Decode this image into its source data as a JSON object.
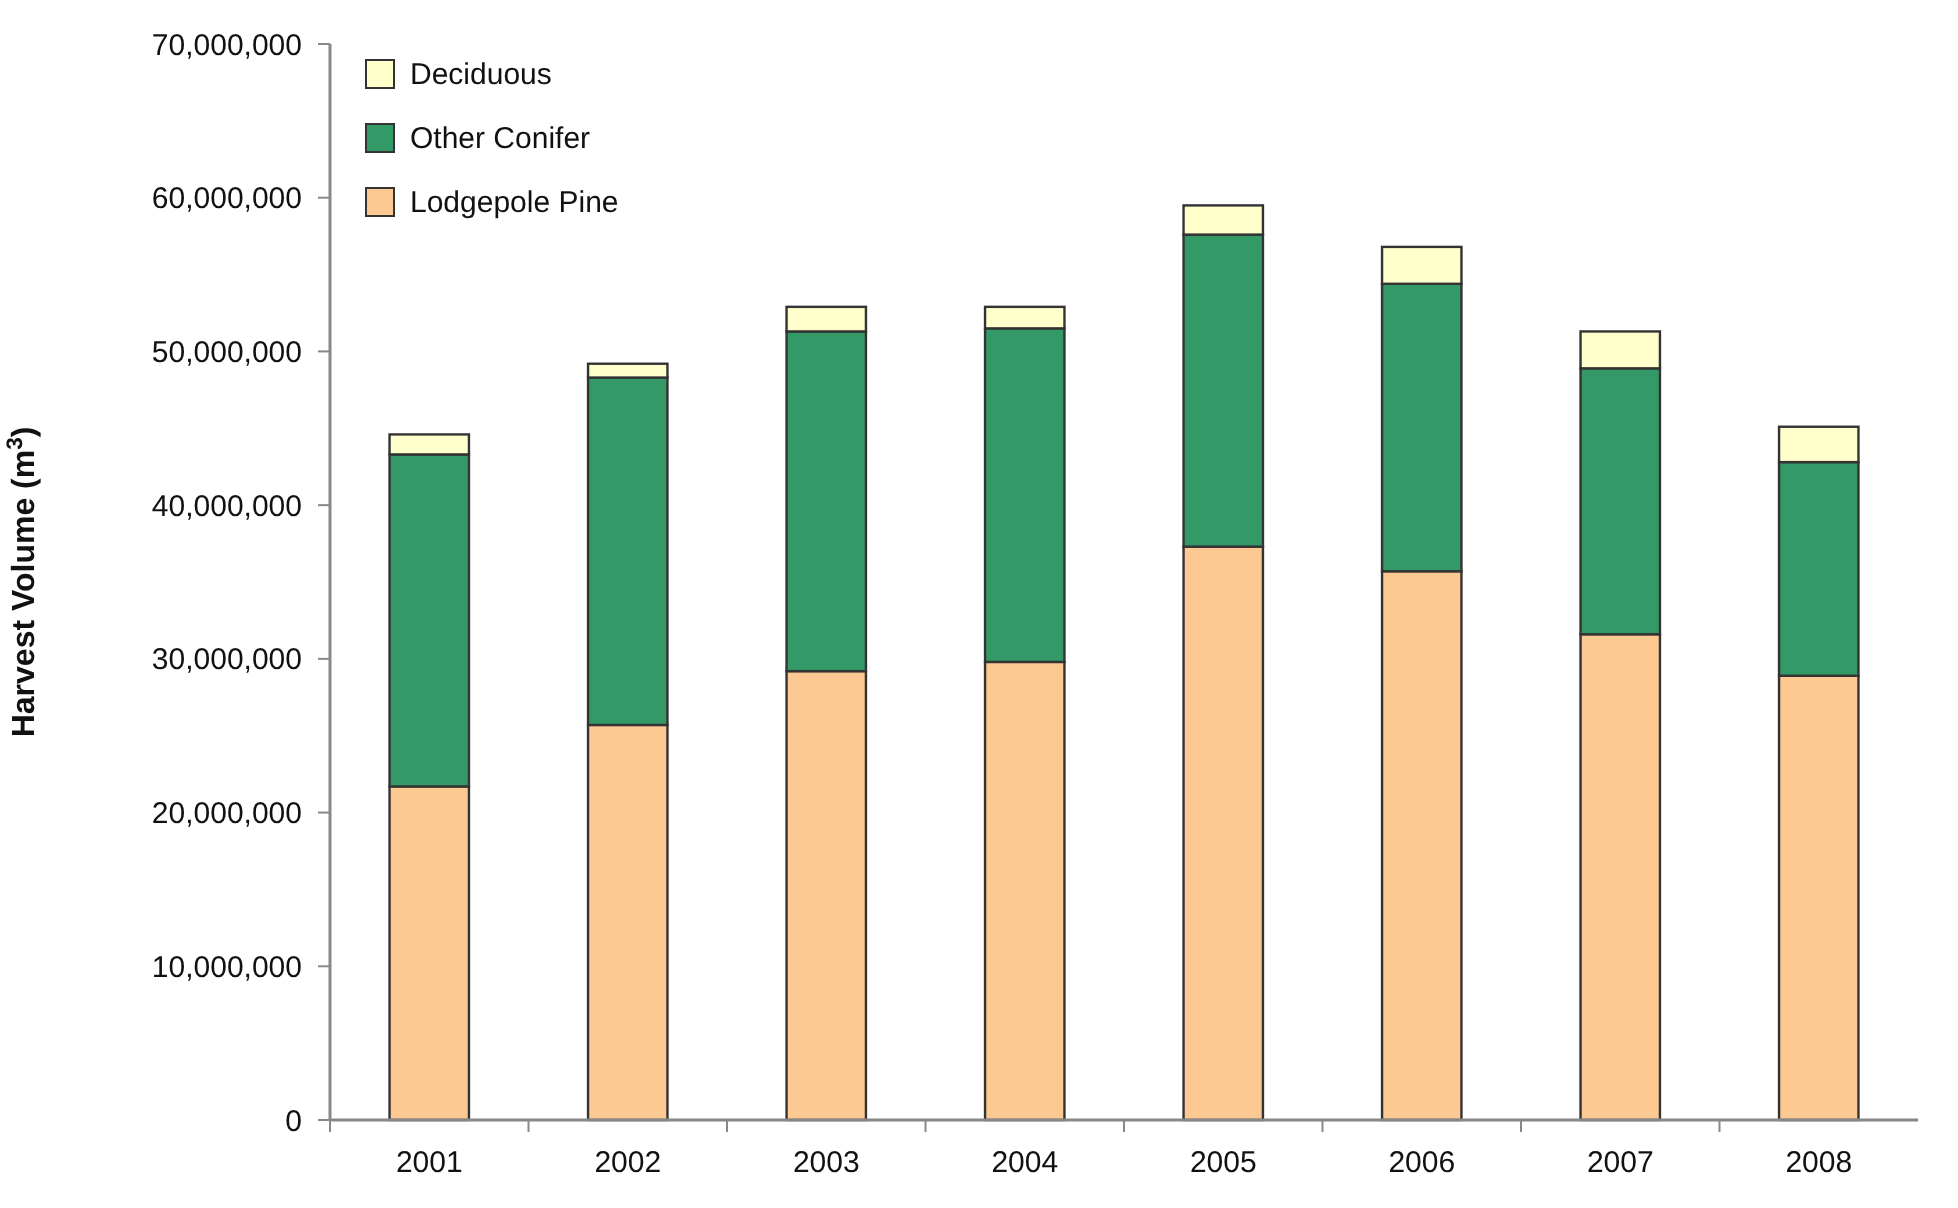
{
  "chart_data": {
    "type": "bar",
    "stacked": true,
    "ylabel": "Harvest Volume (m$^{3}$)",
    "categories": [
      "2001",
      "2002",
      "2003",
      "2004",
      "2005",
      "2006",
      "2007",
      "2008"
    ],
    "series": [
      {
        "name": "Lodgepole Pine",
        "color": "#fdc993",
        "values": [
          21700000,
          25700000,
          29200000,
          29800000,
          37300000,
          35700000,
          31600000,
          28900000
        ]
      },
      {
        "name": "Other Conifer",
        "color": "#339966",
        "values": [
          21600000,
          22600000,
          22100000,
          21700000,
          20300000,
          18700000,
          17300000,
          13900000
        ]
      },
      {
        "name": "Deciduous",
        "color": "#ffffcc",
        "values": [
          1300000,
          900000,
          1600000,
          1400000,
          1900000,
          2400000,
          2400000,
          2300000
        ]
      }
    ],
    "ylim": [
      0,
      70000000
    ],
    "yticks": [
      0,
      {
        "value": 10000000,
        "label": "10,000,000"
      },
      {
        "value": 20000000,
        "label": "20,000,000"
      },
      {
        "value": 30000000,
        "label": "30,000,000"
      },
      {
        "value": 40000000,
        "label": "40,000,000"
      },
      {
        "value": 50000000,
        "label": "50,000,000"
      },
      {
        "value": 60000000,
        "label": "60,000,000"
      },
      {
        "value": 70000000,
        "label": "70,000,000"
      }
    ],
    "grid": false,
    "legend": "top left"
  }
}
